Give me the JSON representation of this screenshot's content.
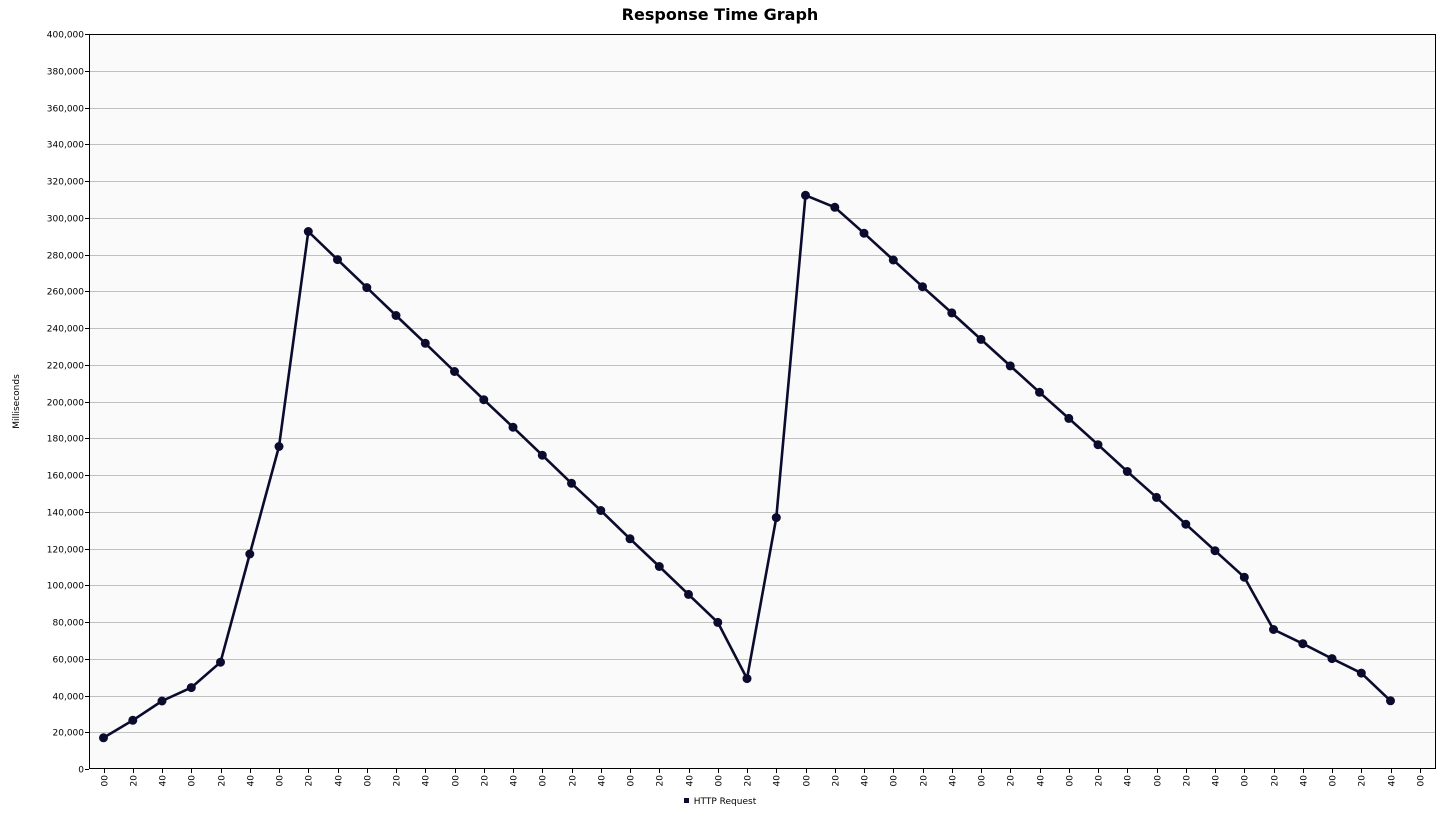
{
  "chart_data": {
    "type": "line",
    "title": "Response Time Graph",
    "xlabel": "",
    "ylabel": "Milliseconds",
    "ylim": [
      0,
      400000
    ],
    "ytick_step": 20000,
    "grid": true,
    "legend_position": "bottom",
    "line_color": "#0b0b2e",
    "x": [
      "00",
      "20",
      "40",
      "00",
      "20",
      "40",
      "00",
      "20",
      "40",
      "00",
      "20",
      "40",
      "00",
      "20",
      "40",
      "00",
      "20",
      "40",
      "00",
      "20",
      "40",
      "00",
      "20",
      "40",
      "00",
      "20",
      "40",
      "00",
      "20",
      "40",
      "00",
      "20",
      "40",
      "00",
      "20",
      "40",
      "00",
      "20",
      "40",
      "00",
      "20",
      "40",
      "00",
      "20",
      "40",
      "00"
    ],
    "series": [
      {
        "name": "HTTP Request",
        "values": [
          17000,
          26500,
          37000,
          44300,
          58100,
          117000,
          175500,
          292500,
          277200,
          262000,
          246800,
          231700,
          216300,
          201000,
          186000,
          170800,
          155500,
          140700,
          125300,
          110200,
          95000,
          79800,
          49200,
          136800,
          312200,
          305700,
          291600,
          277000,
          262500,
          248200,
          233800,
          219400,
          205000,
          190800,
          176500,
          161900,
          147800,
          133200,
          118800,
          104400,
          75900,
          68200,
          60100,
          52200,
          37100,
          null
        ]
      }
    ]
  }
}
